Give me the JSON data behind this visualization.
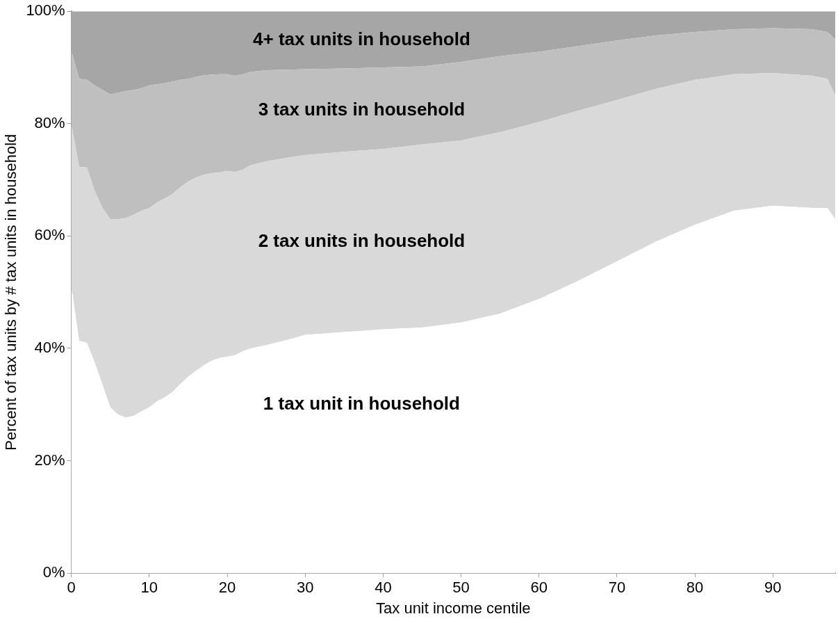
{
  "chart_data": {
    "type": "area",
    "stacked": true,
    "xlabel": "Tax unit income centile",
    "ylabel": "Percent of tax units by # tax units in household",
    "x": [
      0,
      1,
      2,
      3,
      4,
      5,
      6,
      7,
      8,
      9,
      10,
      11,
      12,
      13,
      14,
      15,
      16,
      17,
      18,
      19,
      20,
      21,
      22,
      23,
      25,
      28,
      30,
      35,
      40,
      45,
      50,
      55,
      60,
      65,
      70,
      75,
      80,
      85,
      90,
      95,
      97,
      98
    ],
    "xlim": [
      0,
      98
    ],
    "xticks": [
      0,
      10,
      20,
      30,
      40,
      50,
      60,
      70,
      80,
      90
    ],
    "ylim": [
      0,
      100
    ],
    "yticks": [
      {
        "value": 0,
        "label": "0%"
      },
      {
        "value": 20,
        "label": "20%"
      },
      {
        "value": 40,
        "label": "40%"
      },
      {
        "value": 60,
        "label": "60%"
      },
      {
        "value": 80,
        "label": "80%"
      },
      {
        "value": 100,
        "label": "100%"
      }
    ],
    "legend": false,
    "series": [
      {
        "name": "1 tax unit in household",
        "color": "#ffffff",
        "values": [
          51,
          41.4,
          41,
          37.5,
          33.5,
          29.5,
          28.2,
          27.7,
          28,
          28.8,
          29.5,
          30.6,
          31.3,
          32.3,
          33.7,
          35,
          36,
          37,
          37.8,
          38.3,
          38.5,
          38.8,
          39.5,
          40,
          40.6,
          41.6,
          42.4,
          42.9,
          43.4,
          43.7,
          44.6,
          46.2,
          48.8,
          52,
          55.5,
          59,
          62,
          64.5,
          65.4,
          65,
          65,
          63
        ]
      },
      {
        "name": "2 tax units in household",
        "color": "#d9d9d9",
        "values": [
          29,
          30.9,
          31.2,
          30.5,
          31.5,
          33.5,
          34.8,
          35.5,
          35.8,
          35.7,
          35.5,
          35.4,
          35.4,
          35.2,
          35,
          34.7,
          34.4,
          33.9,
          33.4,
          33,
          33.1,
          32.6,
          32.3,
          32.6,
          32.7,
          32.4,
          32,
          32.1,
          32.1,
          32.6,
          32.4,
          32.3,
          31.5,
          30.3,
          28.7,
          27.2,
          25.8,
          24.3,
          23.6,
          23.5,
          23,
          22
        ]
      },
      {
        "name": "3 tax units in household",
        "color": "#bfbfbf",
        "values": [
          13,
          15.7,
          15.6,
          18.8,
          21,
          22.2,
          22.5,
          22.6,
          22.2,
          21.8,
          21.8,
          21,
          20.5,
          20,
          19.1,
          18.3,
          17.9,
          17.7,
          17.5,
          17.5,
          17.2,
          17.1,
          17,
          16.6,
          16.2,
          15.6,
          15.3,
          14.8,
          14.5,
          13.9,
          14,
          13.5,
          12.5,
          11.5,
          10.6,
          9.5,
          8.5,
          8,
          8,
          8.3,
          8.3,
          10
        ]
      },
      {
        "name": "4+ tax units in household",
        "color": "#a6a6a6",
        "values": [
          7,
          12,
          12.2,
          13.2,
          14,
          14.8,
          14.5,
          14.2,
          14,
          13.7,
          13.2,
          13,
          12.8,
          12.5,
          12.2,
          12,
          11.7,
          11.4,
          11.3,
          11.2,
          11.2,
          11.5,
          11.2,
          10.8,
          10.5,
          10.4,
          10.3,
          10.2,
          10,
          9.8,
          9,
          8,
          7.2,
          6.2,
          5.2,
          4.3,
          3.7,
          3.2,
          3,
          3.2,
          3.7,
          5
        ]
      }
    ]
  }
}
